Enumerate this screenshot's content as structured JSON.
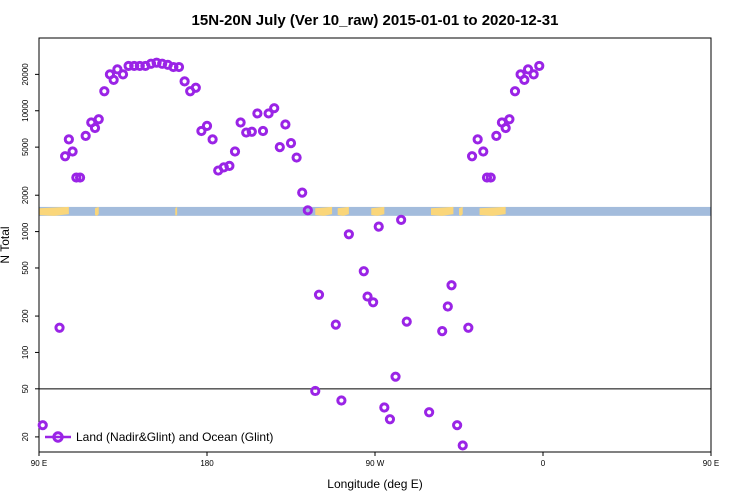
{
  "chart_data": {
    "type": "scatter",
    "title": "15N-20N July (Ver 10_raw)   2015-01-01 to 2020-12-31",
    "xlabel": "Longitude (deg E)",
    "ylabel": "N Total",
    "x_scale": "linear",
    "y_scale": "log",
    "xlim": [
      90,
      450
    ],
    "ylim": [
      15,
      40000
    ],
    "xticks": [
      {
        "value": 90,
        "label": "90 E"
      },
      {
        "value": 180,
        "label": "180"
      },
      {
        "value": 270,
        "label": "90 W"
      },
      {
        "value": 360,
        "label": "0"
      },
      {
        "value": 450,
        "label": "90 E"
      },
      {
        "value": 540,
        "label": "180"
      }
    ],
    "yticks": [
      {
        "value": 20,
        "label": "20"
      },
      {
        "value": 50,
        "label": "50"
      },
      {
        "value": 100,
        "label": "100"
      },
      {
        "value": 200,
        "label": "200"
      },
      {
        "value": 500,
        "label": "500"
      },
      {
        "value": 1000,
        "label": "1000"
      },
      {
        "value": 2000,
        "label": "2000"
      },
      {
        "value": 5000,
        "label": "5000"
      },
      {
        "value": 10000,
        "label": "10000"
      },
      {
        "value": 20000,
        "label": "20000"
      }
    ],
    "reference_line_y": 50,
    "map_strip": {
      "y_range": [
        1350,
        1600
      ],
      "ocean_color": "#a3bcdc",
      "land_color": "#fad67a"
    },
    "legend_position": "bottom-left",
    "series": [
      {
        "name": "Land (Nadir&Glint) and Ocean (Glint)",
        "color": "#9a24e6",
        "points": [
          [
            92,
            25
          ],
          [
            101,
            160
          ],
          [
            104,
            4200
          ],
          [
            106,
            5800
          ],
          [
            108,
            4600
          ],
          [
            110,
            2800
          ],
          [
            112,
            2800
          ],
          [
            115,
            6200
          ],
          [
            118,
            8000
          ],
          [
            120,
            7200
          ],
          [
            122,
            8500
          ],
          [
            125,
            14500
          ],
          [
            128,
            20000
          ],
          [
            130,
            18000
          ],
          [
            132,
            22000
          ],
          [
            135,
            20000
          ],
          [
            138,
            23500
          ],
          [
            141,
            23500
          ],
          [
            144,
            23500
          ],
          [
            147,
            23500
          ],
          [
            150,
            24500
          ],
          [
            153,
            25000
          ],
          [
            156,
            24500
          ],
          [
            159,
            24000
          ],
          [
            162,
            23000
          ],
          [
            165,
            23000
          ],
          [
            168,
            17500
          ],
          [
            171,
            14500
          ],
          [
            174,
            15500
          ],
          [
            177,
            6800
          ],
          [
            180,
            7500
          ],
          [
            183,
            5800
          ],
          [
            186,
            3200
          ],
          [
            189,
            3400
          ],
          [
            192,
            3500
          ],
          [
            195,
            4600
          ],
          [
            198,
            8000
          ],
          [
            201,
            6600
          ],
          [
            204,
            6700
          ],
          [
            207,
            9500
          ],
          [
            210,
            6800
          ],
          [
            213,
            9500
          ],
          [
            216,
            10500
          ],
          [
            219,
            5000
          ],
          [
            222,
            7700
          ],
          [
            225,
            5400
          ],
          [
            228,
            4100
          ],
          [
            231,
            2100
          ],
          [
            234,
            1500
          ],
          [
            238,
            48
          ],
          [
            240,
            300
          ],
          [
            249,
            170
          ],
          [
            252,
            40
          ],
          [
            256,
            950
          ],
          [
            264,
            470
          ],
          [
            266,
            290
          ],
          [
            269,
            260
          ],
          [
            272,
            1100
          ],
          [
            275,
            35
          ],
          [
            278,
            28
          ],
          [
            281,
            63
          ],
          [
            284,
            1250
          ],
          [
            287,
            180
          ],
          [
            299,
            32
          ],
          [
            306,
            150
          ],
          [
            309,
            240
          ],
          [
            311,
            360
          ],
          [
            314,
            25
          ],
          [
            317,
            17
          ],
          [
            320,
            160
          ],
          [
            322,
            4200
          ],
          [
            325,
            5800
          ],
          [
            328,
            4600
          ],
          [
            330,
            2800
          ],
          [
            332,
            2800
          ],
          [
            335,
            6200
          ],
          [
            338,
            8000
          ],
          [
            340,
            7200
          ],
          [
            342,
            8500
          ],
          [
            345,
            14500
          ],
          [
            348,
            20000
          ],
          [
            350,
            18000
          ],
          [
            352,
            22000
          ],
          [
            355,
            20000
          ],
          [
            358,
            23500
          ]
        ]
      }
    ]
  }
}
